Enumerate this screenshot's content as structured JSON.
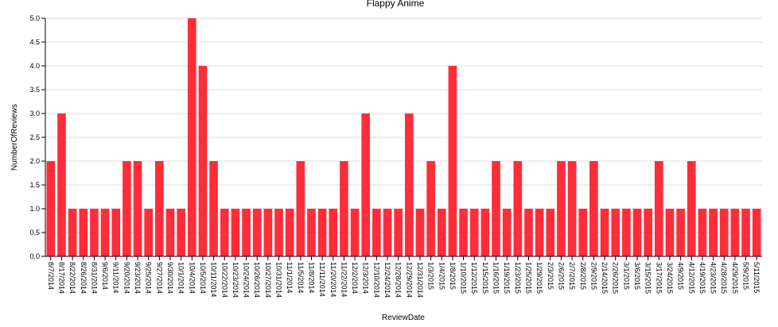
{
  "chart_data": {
    "type": "bar",
    "title": "Flappy Anime",
    "xlabel": "ReviewDate",
    "ylabel": "NumberOfReviews",
    "ylim": [
      0,
      5
    ],
    "yticks": [
      "0.0",
      "0.5",
      "1.0",
      "1.5",
      "2.0",
      "2.5",
      "3.0",
      "3.5",
      "4.0",
      "4.5",
      "5.0"
    ],
    "grid": true,
    "bar_color": "#ff2d3a",
    "categories": [
      "8/7/2014",
      "8/17/2014",
      "8/22/2014",
      "8/26/2014",
      "8/31/2014",
      "9/6/2014",
      "9/11/2014",
      "9/20/2014",
      "9/23/2014",
      "9/25/2014",
      "9/27/2014",
      "9/30/2014",
      "10/1/2014",
      "10/4/2014",
      "10/5/2014",
      "10/11/2014",
      "10/22/2014",
      "10/23/2014",
      "10/24/2014",
      "10/26/2014",
      "10/27/2014",
      "10/31/2014",
      "11/1/2014",
      "11/5/2014",
      "11/8/2014",
      "11/11/2014",
      "11/20/2014",
      "11/22/2014",
      "12/2/2014",
      "12/3/2014",
      "12/10/2014",
      "12/24/2014",
      "12/28/2014",
      "12/29/2014",
      "12/31/2014",
      "1/3/2015",
      "1/4/2015",
      "1/8/2015",
      "1/10/2015",
      "1/12/2015",
      "1/15/2015",
      "1/16/2015",
      "1/19/2015",
      "1/23/2015",
      "1/25/2015",
      "1/29/2015",
      "2/3/2015",
      "2/6/2015",
      "2/7/2015",
      "2/8/2015",
      "2/9/2015",
      "2/14/2015",
      "2/26/2015",
      "3/1/2015",
      "3/6/2015",
      "3/15/2015",
      "3/17/2015",
      "3/24/2015",
      "4/9/2015",
      "4/12/2015",
      "4/19/2015",
      "4/23/2015",
      "4/28/2015",
      "4/29/2015",
      "5/9/2015",
      "5/11/2015"
    ],
    "values": [
      2,
      3,
      1,
      1,
      1,
      1,
      1,
      2,
      2,
      1,
      2,
      1,
      1,
      5,
      4,
      2,
      1,
      1,
      1,
      1,
      1,
      1,
      1,
      2,
      1,
      1,
      1,
      2,
      1,
      3,
      1,
      1,
      1,
      3,
      1,
      2,
      1,
      4,
      1,
      1,
      1,
      2,
      1,
      2,
      1,
      1,
      1,
      2,
      2,
      1,
      2,
      1,
      1,
      1,
      1,
      1,
      2,
      1,
      1,
      2,
      1,
      1,
      1,
      1,
      1,
      1
    ]
  }
}
